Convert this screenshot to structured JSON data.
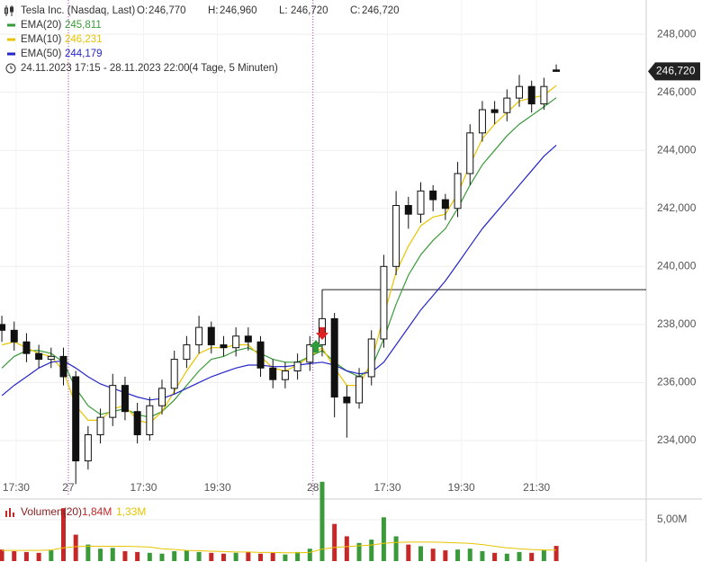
{
  "chart_data": {
    "type": "candlestick",
    "title": "Tesla Inc. (Nasdaq, Last)",
    "ohlc_header": [
      {
        "label": "O:",
        "value": "246,770"
      },
      {
        "label": "H:",
        "value": "246,960"
      },
      {
        "label": "L:",
        "value": "246,720"
      },
      {
        "label": "C:",
        "value": "246,720"
      }
    ],
    "period": "24.11.2023 17:15 - 28.11.2023 22:00",
    "period_note": "(4 Tage, 5 Minuten)",
    "xlim": [
      -0.15,
      52.3
    ],
    "xticks": [
      {
        "value": 1.16,
        "label": "17:30"
      },
      {
        "value": 5.4,
        "label": "27"
      },
      {
        "value": 11.5,
        "label": "17:30"
      },
      {
        "value": 17.5,
        "label": "19:30"
      },
      {
        "value": 25.25,
        "label": "28"
      },
      {
        "value": 31.3,
        "label": "17:30"
      },
      {
        "value": 37.3,
        "label": "19:30"
      },
      {
        "value": 43.4,
        "label": "21:30"
      }
    ],
    "day_separators": [
      5.4,
      25.25
    ],
    "ylim": [
      232140,
      249180
    ],
    "yticks": [
      {
        "value": 234000,
        "label": "234,000"
      },
      {
        "value": 236000,
        "label": "236,000"
      },
      {
        "value": 238000,
        "label": "238,000"
      },
      {
        "value": 240000,
        "label": "240,000"
      },
      {
        "value": 242000,
        "label": "242,000"
      },
      {
        "value": 244000,
        "label": "244,000"
      },
      {
        "value": 246000,
        "label": "246,000"
      },
      {
        "value": 248000,
        "label": "248,000"
      }
    ],
    "grid": true,
    "last_price": {
      "value": 246720,
      "label": "246,720"
    },
    "reference_line": 239200,
    "open": [
      238000,
      237800,
      237400,
      237000,
      236800,
      236900,
      236200,
      233300,
      234200,
      234800,
      235900,
      235000,
      234200,
      235200,
      235800,
      236800,
      237300,
      237900,
      237300,
      237200,
      237600,
      237400,
      236500,
      236100,
      236400,
      236700,
      237300,
      238200,
      235500,
      235300,
      236200,
      237500,
      240000,
      242100,
      241800,
      242600,
      242300,
      242000,
      243200,
      244600,
      245400,
      245300,
      245800,
      246200,
      245600,
      246770
    ],
    "high": [
      238300,
      238100,
      237700,
      237300,
      237200,
      237200,
      236400,
      234500,
      235100,
      236300,
      236200,
      235300,
      235500,
      236100,
      237100,
      237600,
      238300,
      238100,
      237600,
      237900,
      237900,
      237600,
      236800,
      236700,
      237000,
      237600,
      239200,
      238400,
      235900,
      236500,
      237800,
      240400,
      242600,
      242400,
      242900,
      242800,
      242500,
      243600,
      244900,
      245700,
      245700,
      246100,
      246600,
      246400,
      246500,
      246960
    ],
    "low": [
      237400,
      237100,
      236700,
      236500,
      236500,
      235900,
      232500,
      233000,
      233900,
      234500,
      234700,
      233900,
      234000,
      234900,
      235600,
      236500,
      237000,
      237000,
      236900,
      236900,
      237100,
      236200,
      235800,
      235800,
      236100,
      236400,
      236900,
      234800,
      234100,
      235100,
      235900,
      237200,
      239700,
      241300,
      241500,
      241900,
      241600,
      241700,
      242800,
      244300,
      244900,
      245000,
      245500,
      245300,
      245400,
      246720
    ],
    "close": [
      237800,
      237400,
      237000,
      236800,
      236900,
      236200,
      233300,
      234200,
      234800,
      235900,
      235000,
      234200,
      235200,
      235800,
      236800,
      237300,
      237900,
      237300,
      237200,
      237600,
      237400,
      236500,
      236100,
      236400,
      236700,
      237300,
      238200,
      235500,
      235300,
      236200,
      237500,
      240000,
      242100,
      241800,
      242600,
      242300,
      242000,
      243200,
      244600,
      245400,
      245300,
      245800,
      246200,
      245600,
      246200,
      246720
    ],
    "series": [
      {
        "name": "EMA(20)",
        "last_label": "245,811",
        "color": "#3a9a3a",
        "values": [
          236500,
          236900,
          237100,
          237100,
          237000,
          236700,
          235800,
          235200,
          234900,
          235000,
          235100,
          234900,
          234800,
          235000,
          235400,
          235900,
          236400,
          236800,
          236900,
          237100,
          237200,
          237000,
          236800,
          236700,
          236700,
          236900,
          237100,
          236700,
          236400,
          236200,
          236500,
          237500,
          238700,
          239700,
          240400,
          240900,
          241300,
          242000,
          242800,
          243500,
          244000,
          244500,
          244900,
          245200,
          245500,
          245811
        ]
      },
      {
        "name": "EMA(10)",
        "last_label": "246,231",
        "color": "#e8c400",
        "values": [
          237300,
          237400,
          237200,
          237000,
          236900,
          236400,
          235200,
          234700,
          234700,
          235100,
          235200,
          234700,
          234600,
          235000,
          235700,
          236400,
          237000,
          237200,
          237200,
          237300,
          237300,
          236900,
          236500,
          236400,
          236600,
          236900,
          237200,
          236500,
          235900,
          235900,
          236700,
          238300,
          239800,
          240700,
          241400,
          241700,
          241800,
          242500,
          243500,
          244400,
          244900,
          245300,
          245700,
          245800,
          245900,
          246231
        ]
      },
      {
        "name": "EMA(50)",
        "last_label": "244,179",
        "color": "#2626c8",
        "values": [
          235550,
          235900,
          236200,
          236500,
          236700,
          236750,
          236500,
          236200,
          235950,
          235800,
          235650,
          235500,
          235400,
          235450,
          235600,
          235800,
          236000,
          236200,
          236350,
          236500,
          236600,
          236600,
          236550,
          236550,
          236600,
          236650,
          236700,
          236600,
          236400,
          236300,
          236350,
          236700,
          237300,
          237900,
          238500,
          239000,
          239500,
          240100,
          240700,
          241300,
          241800,
          242300,
          242800,
          243300,
          243800,
          244179
        ]
      }
    ],
    "volume": {
      "name": "Volumen(20)",
      "last_label": "1,84M",
      "ma_label": "1,33M",
      "ylim": [
        0,
        7400000
      ],
      "yticks": [
        {
          "value": 5000000,
          "label": "5,00M"
        }
      ],
      "up_color": "#3a9a3a",
      "down_color": "#c62828",
      "ma_color": "#e8c400",
      "values": [
        1400000,
        1200000,
        1100000,
        1000000,
        1300000,
        6400000,
        3200000,
        2000000,
        1500000,
        1600000,
        1200000,
        1100000,
        1000000,
        900000,
        1200000,
        1300000,
        1100000,
        1000000,
        900000,
        1000000,
        1100000,
        900000,
        1000000,
        800000,
        1100000,
        1500000,
        9600000,
        4500000,
        3000000,
        2200000,
        2600000,
        5300000,
        3000000,
        2000000,
        1800000,
        1500000,
        1300000,
        1400000,
        1500000,
        1200000,
        1000000,
        900000,
        1100000,
        1000000,
        1300000,
        1840000
      ],
      "ma": [
        1300000,
        1300000,
        1300000,
        1300000,
        1350000,
        1600000,
        1750000,
        1800000,
        1800000,
        1800000,
        1800000,
        1750000,
        1700000,
        1500000,
        1400000,
        1300000,
        1250000,
        1200000,
        1150000,
        1100000,
        1100000,
        1050000,
        1050000,
        1000000,
        1000000,
        1050000,
        1450000,
        1650000,
        1750000,
        1850000,
        1950000,
        2150000,
        2250000,
        2300000,
        2300000,
        2300000,
        2250000,
        2200000,
        2150000,
        2000000,
        1800000,
        1600000,
        1500000,
        1400000,
        1350000,
        1330000
      ]
    }
  }
}
